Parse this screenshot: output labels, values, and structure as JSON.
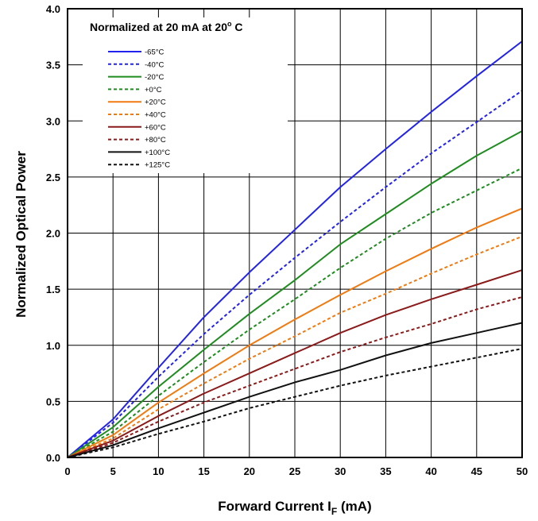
{
  "chart_data": {
    "type": "line",
    "xlabel": "Forward Current I",
    "xlabel_sub": "F",
    "xlabel_unit": " (mA)",
    "ylabel": "Normalized Optical Power",
    "legend_title": "Normalized at 20 mA at 20",
    "legend_title_sup": "o",
    "legend_title_tail": " C",
    "legend_position": "top-left",
    "grid": true,
    "xlim": [
      0,
      50
    ],
    "ylim": [
      0,
      4.0
    ],
    "x_ticks": [
      "0",
      "5",
      "10",
      "15",
      "20",
      "25",
      "30",
      "35",
      "40",
      "45",
      "50"
    ],
    "y_ticks": [
      "0.0",
      "0.5",
      "1.0",
      "1.5",
      "2.0",
      "2.5",
      "3.0",
      "3.5",
      "4.0"
    ],
    "x": [
      0,
      5,
      10,
      15,
      20,
      25,
      30,
      35,
      40,
      45,
      50
    ],
    "series": [
      {
        "name": "-65°C",
        "color": "#2222ee",
        "dash": false,
        "values": [
          0,
          0.34,
          0.8,
          1.25,
          1.65,
          2.03,
          2.41,
          2.75,
          3.08,
          3.4,
          3.71
        ]
      },
      {
        "name": "-40°C",
        "color": "#2222ee",
        "dash": true,
        "values": [
          0,
          0.31,
          0.72,
          1.1,
          1.45,
          1.78,
          2.1,
          2.41,
          2.71,
          2.99,
          3.27
        ]
      },
      {
        "name": "-20°C",
        "color": "#1e8c1e",
        "dash": false,
        "values": [
          0,
          0.27,
          0.63,
          0.96,
          1.28,
          1.58,
          1.9,
          2.17,
          2.44,
          2.69,
          2.91
        ]
      },
      {
        "name": "+0°C",
        "color": "#1e8c1e",
        "dash": true,
        "values": [
          0,
          0.23,
          0.55,
          0.85,
          1.14,
          1.41,
          1.69,
          1.95,
          2.18,
          2.38,
          2.58
        ]
      },
      {
        "name": "+20°C",
        "color": "#f07a10",
        "dash": false,
        "values": [
          0,
          0.2,
          0.49,
          0.75,
          1.0,
          1.23,
          1.45,
          1.66,
          1.86,
          2.05,
          2.22
        ]
      },
      {
        "name": "+40°C",
        "color": "#f07a10",
        "dash": true,
        "values": [
          0,
          0.17,
          0.43,
          0.66,
          0.88,
          1.08,
          1.29,
          1.46,
          1.64,
          1.81,
          1.97
        ]
      },
      {
        "name": "+60°C",
        "color": "#8b1a1a",
        "dash": false,
        "values": [
          0,
          0.15,
          0.37,
          0.57,
          0.75,
          0.93,
          1.11,
          1.27,
          1.41,
          1.54,
          1.67
        ]
      },
      {
        "name": "+80°C",
        "color": "#8b1a1a",
        "dash": true,
        "values": [
          0,
          0.13,
          0.32,
          0.49,
          0.64,
          0.79,
          0.94,
          1.07,
          1.19,
          1.32,
          1.43
        ]
      },
      {
        "name": "+100°C",
        "color": "#111111",
        "dash": false,
        "values": [
          0,
          0.11,
          0.26,
          0.4,
          0.54,
          0.67,
          0.78,
          0.91,
          1.02,
          1.11,
          1.2
        ]
      },
      {
        "name": "+125°C",
        "color": "#111111",
        "dash": true,
        "values": [
          0,
          0.09,
          0.21,
          0.32,
          0.44,
          0.54,
          0.64,
          0.73,
          0.81,
          0.89,
          0.97
        ]
      }
    ]
  }
}
